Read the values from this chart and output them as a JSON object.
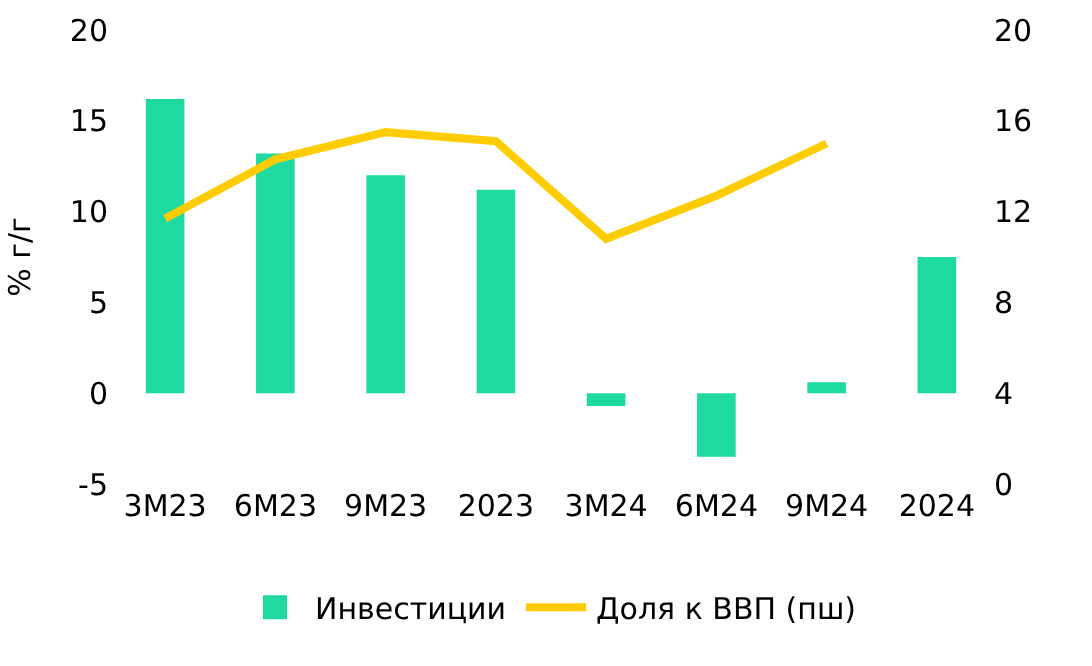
{
  "chart_data": {
    "type": "bar",
    "ylabel": "% г/г",
    "categories": [
      "3М23",
      "6М23",
      "9М23",
      "2023",
      "3М24",
      "6М24",
      "9М24",
      "2024"
    ],
    "series": [
      {
        "name": "Инвестиции",
        "color": "#1ed9a0",
        "values": [
          16.2,
          13.2,
          12.0,
          11.2,
          -0.7,
          -3.5,
          0.6,
          7.5
        ]
      },
      {
        "name": "Доля к ВВП (пш)",
        "type": "line",
        "axis": "y2",
        "color": "#ffcc00",
        "values": [
          11.7,
          14.3,
          15.5,
          15.1,
          10.8,
          12.7,
          15.0,
          null
        ]
      }
    ],
    "ylim": [
      -5,
      20
    ],
    "yticks": [
      -5,
      0,
      5,
      10,
      15,
      20
    ],
    "y2lim": [
      0,
      20
    ],
    "y2ticks": [
      0,
      4,
      8,
      12,
      16,
      20
    ],
    "grid": false,
    "legend": "bottom",
    "marker": "none"
  }
}
